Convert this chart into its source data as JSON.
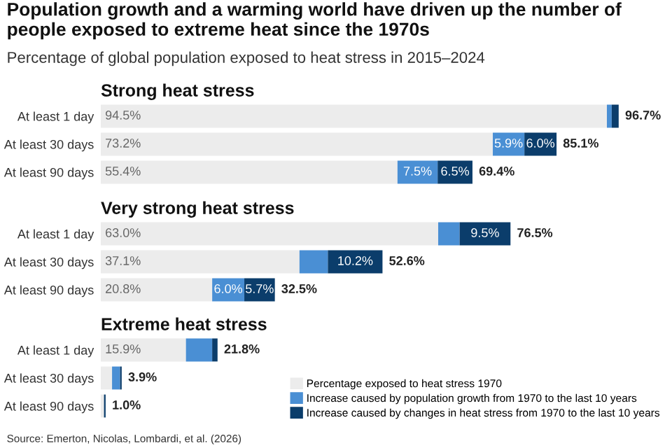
{
  "chart_data": [
    {
      "type": "bar",
      "orientation": "horizontal",
      "stacked": true,
      "title": "Strong heat stress",
      "annotations": [
        "Population growth and a warming world have driven up the number of people exposed to extreme heat since the 1970s",
        "Percentage of global population exposed to heat stress in 2015–2024"
      ],
      "categories": [
        "At least 1 day",
        "At least 30 days",
        "At least 90 days"
      ],
      "tick_labels": "y",
      "legend": false,
      "series": [
        {
          "color": "#ececec",
          "values": [
            94.5,
            73.2,
            55.4
          ],
          "value_labels": [
            "94.5%",
            "73.2%",
            "55.4%"
          ]
        },
        {
          "color": "#4a8fd4",
          "values": [
            0.9,
            5.9,
            7.5
          ],
          "value_labels": [
            null,
            "5.9%",
            "7.5%"
          ]
        },
        {
          "color": "#0b3d6b",
          "values": [
            1.3,
            6.0,
            6.5
          ],
          "value_labels": [
            null,
            "6.0%",
            "6.5%"
          ]
        }
      ],
      "totals": [
        "96.7%",
        "85.1%",
        "69.4%"
      ]
    },
    {
      "type": "bar",
      "orientation": "horizontal",
      "stacked": true,
      "title": "Very strong heat stress",
      "categories": [
        "At least 1 day",
        "At least 30 days",
        "At least 90 days"
      ],
      "tick_labels": "y",
      "legend": false,
      "series": [
        {
          "color": "#ececec",
          "values": [
            63.0,
            37.1,
            20.8
          ],
          "value_labels": [
            "63.0%",
            "37.1%",
            "20.8%"
          ]
        },
        {
          "color": "#4a8fd4",
          "values": [
            4.0,
            5.3,
            6.0
          ],
          "value_labels": [
            null,
            null,
            "6.0%"
          ]
        },
        {
          "color": "#0b3d6b",
          "values": [
            9.5,
            10.2,
            5.7
          ],
          "value_labels": [
            "9.5%",
            "10.2%",
            "5.7%"
          ]
        }
      ],
      "totals": [
        "76.5%",
        "52.6%",
        "32.5%"
      ]
    },
    {
      "type": "bar",
      "orientation": "horizontal",
      "stacked": true,
      "title": "Extreme heat stress",
      "annotations": [
        "Source: Emerton, Nicolas, Lombardi, et al. (2026)"
      ],
      "categories": [
        "At least 1 day",
        "At least 30 days",
        "At least 90 days"
      ],
      "tick_labels": "y",
      "legend": "bottom right",
      "series": [
        {
          "name": "Percentage exposed to heat stress 1970",
          "color": "#ececec",
          "values": [
            15.9,
            2.1,
            0.6
          ],
          "value_labels": [
            "15.9%",
            null,
            null
          ]
        },
        {
          "name": "Increase caused by population growth from 1970 to the last 10 years",
          "color": "#4a8fd4",
          "values": [
            4.9,
            1.5,
            null
          ],
          "value_labels": [
            null,
            null,
            null
          ]
        },
        {
          "name": "Increase caused by changes in heat stress from 1970 to the last 10 years",
          "color": "#0b3d6b",
          "values": [
            1.0,
            0.3,
            0.3
          ],
          "value_labels": [
            null,
            null,
            null
          ]
        }
      ],
      "totals": [
        "21.8%",
        "3.9%",
        "1.0%"
      ]
    }
  ]
}
